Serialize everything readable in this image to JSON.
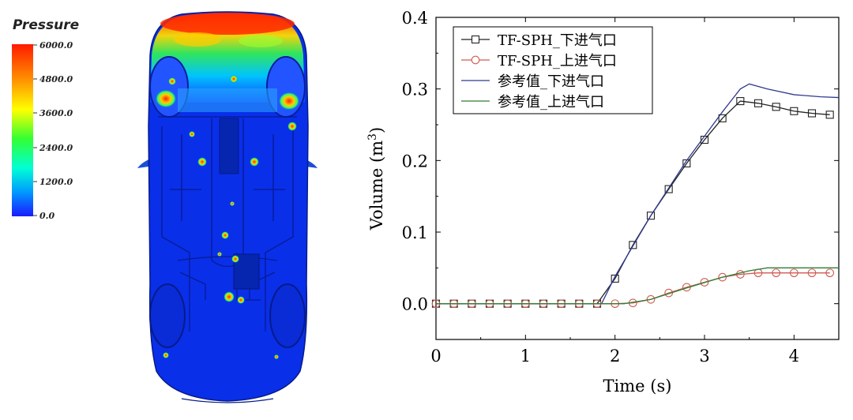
{
  "contour": {
    "title": "Pressure",
    "ticks": [
      "6000.0",
      "4800.0",
      "3600.0",
      "2400.0",
      "1200.0",
      "0.0"
    ]
  },
  "chart_data": {
    "type": "line",
    "xlabel": "Time (s)",
    "ylabel": "Volume (m",
    "ylabel_sup": "3",
    "ylabel_close": ")",
    "xlim": [
      0,
      4.5
    ],
    "ylim": [
      -0.05,
      0.4
    ],
    "xticks": [
      "0",
      "1",
      "2",
      "3",
      "4"
    ],
    "yticks": [
      "0.0",
      "0.1",
      "0.2",
      "0.3",
      "0.4"
    ],
    "legend_position": "top-left",
    "series": [
      {
        "name": "TF-SPH_下进气口",
        "color": "#222222",
        "marker": "square",
        "x": [
          0,
          0.2,
          0.4,
          0.6,
          0.8,
          1.0,
          1.2,
          1.4,
          1.6,
          1.8,
          2.0,
          2.2,
          2.4,
          2.6,
          2.8,
          3.0,
          3.2,
          3.4,
          3.6,
          3.8,
          4.0,
          4.2,
          4.4
        ],
        "y": [
          0,
          0,
          0,
          0,
          0,
          0,
          0,
          0,
          0,
          0,
          0.035,
          0.082,
          0.123,
          0.16,
          0.196,
          0.229,
          0.259,
          0.283,
          0.28,
          0.275,
          0.269,
          0.266,
          0.264
        ]
      },
      {
        "name": "TF-SPH_上进气口",
        "color": "#d05a52",
        "marker": "circle",
        "x": [
          0,
          0.2,
          0.4,
          0.6,
          0.8,
          1.0,
          1.2,
          1.4,
          1.6,
          1.8,
          2.0,
          2.2,
          2.4,
          2.6,
          2.8,
          3.0,
          3.2,
          3.4,
          3.6,
          3.8,
          4.0,
          4.2,
          4.4
        ],
        "y": [
          0,
          0,
          0,
          0,
          0,
          0,
          0,
          0,
          0,
          0,
          0,
          0.001,
          0.006,
          0.015,
          0.023,
          0.03,
          0.037,
          0.041,
          0.043,
          0.043,
          0.043,
          0.043,
          0.043
        ]
      },
      {
        "name": "参考值_下进气口",
        "color": "#2f3a8f",
        "marker": "none",
        "x": [
          0,
          1.85,
          2.0,
          2.4,
          2.8,
          3.2,
          3.4,
          3.5,
          3.7,
          4.0,
          4.3,
          4.5
        ],
        "y": [
          0,
          0,
          0.038,
          0.123,
          0.2,
          0.268,
          0.3,
          0.307,
          0.3,
          0.292,
          0.289,
          0.288
        ]
      },
      {
        "name": "参考值_上进气口",
        "color": "#2e7d32",
        "marker": "none",
        "x": [
          0,
          2.1,
          2.4,
          2.8,
          3.2,
          3.5,
          3.7,
          4.0,
          4.5
        ],
        "y": [
          0,
          0,
          0.006,
          0.022,
          0.037,
          0.046,
          0.05,
          0.05,
          0.05
        ]
      }
    ]
  }
}
